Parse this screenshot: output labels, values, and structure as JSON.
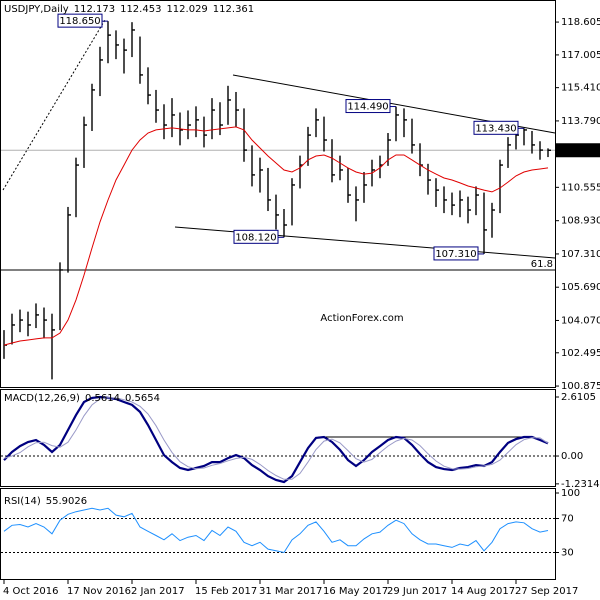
{
  "chart_data": [
    {
      "type": "ohlc",
      "title": "USDJPY,Daily",
      "last_open": 112.173,
      "categories": [
        "4 Oct 2016",
        null,
        null,
        null,
        null,
        null,
        null,
        null,
        "17 Nov 2016",
        null,
        null,
        null,
        null,
        null,
        null,
        null,
        "2 Jan 2017",
        null,
        null,
        null,
        null,
        null,
        null,
        null,
        "15 Feb 2017",
        null,
        null,
        null,
        null,
        null,
        null,
        null,
        "31 Mar 2017",
        null,
        null,
        null,
        null,
        null,
        null,
        null,
        "16 May 2017",
        null,
        null,
        null,
        null,
        null,
        null,
        null,
        "29 Jun 2017",
        null,
        null,
        null,
        null,
        null,
        null,
        null,
        "14 Aug 2017",
        null,
        null,
        null,
        null,
        null,
        null,
        null,
        "27 Sep 2017",
        null,
        null,
        null,
        null
      ],
      "high": [
        103.6,
        104.4,
        104.6,
        104.5,
        104.9,
        104.7,
        104.4,
        106.9,
        109.6,
        112.0,
        114.0,
        115.6,
        117.4,
        118.65,
        118.2,
        117.8,
        118.6,
        117.9,
        116.4,
        115.3,
        114.6,
        114.9,
        114.2,
        114.3,
        114.5,
        114.0,
        114.9,
        114.7,
        115.5,
        115.2,
        114.4,
        112.6,
        112.0,
        111.5,
        110.2,
        109.5,
        111.0,
        112.1,
        113.5,
        114.4,
        114.0,
        112.9,
        112.1,
        111.5,
        110.6,
        111.3,
        111.9,
        112.1,
        113.2,
        114.49,
        114.4,
        113.9,
        112.7,
        111.7,
        111.0,
        110.6,
        110.3,
        110.4,
        110.1,
        110.6,
        110.3,
        109.8,
        111.9,
        113.0,
        113.3,
        113.43,
        113.3,
        112.8,
        112.453
      ],
      "low": [
        102.2,
        102.9,
        103.5,
        103.3,
        103.7,
        103.2,
        101.2,
        103.6,
        106.4,
        109.1,
        111.5,
        113.3,
        115.0,
        116.6,
        116.8,
        116.1,
        116.9,
        115.6,
        114.6,
        113.7,
        112.9,
        113.0,
        112.6,
        112.9,
        113.0,
        112.5,
        112.9,
        113.1,
        113.6,
        113.5,
        111.8,
        110.6,
        110.3,
        109.4,
        108.5,
        108.12,
        108.7,
        110.5,
        111.6,
        113.0,
        112.3,
        110.8,
        110.9,
        109.8,
        108.9,
        109.8,
        110.6,
        111.0,
        111.6,
        112.8,
        113.0,
        112.2,
        111.1,
        110.2,
        109.6,
        109.3,
        109.2,
        109.1,
        108.8,
        109.2,
        107.31,
        108.1,
        109.3,
        111.5,
        112.4,
        112.6,
        112.2,
        111.9,
        112.029
      ],
      "close": [
        102.87,
        103.85,
        104.09,
        103.85,
        104.34,
        104.09,
        103.61,
        106.53,
        109.21,
        111.64,
        113.59,
        115.3,
        116.76,
        117.97,
        117.49,
        117.24,
        118.22,
        116.03,
        115.05,
        114.32,
        113.59,
        114.08,
        113.35,
        113.59,
        113.84,
        113.1,
        114.32,
        113.59,
        114.81,
        114.32,
        112.37,
        111.16,
        111.4,
        109.94,
        109.21,
        108.72,
        110.67,
        111.64,
        113.1,
        113.84,
        112.86,
        111.16,
        111.4,
        110.18,
        109.94,
        110.67,
        111.4,
        111.64,
        112.86,
        114.08,
        113.84,
        112.62,
        111.64,
        110.91,
        110.42,
        109.94,
        109.69,
        109.94,
        109.45,
        110.18,
        108.48,
        109.45,
        111.64,
        112.62,
        113.1,
        113.35,
        112.62,
        112.37,
        112.361
      ],
      "color": "#000000",
      "ma": {
        "color": "#e00000",
        "values": [
          102.87,
          102.97,
          103.07,
          103.12,
          103.17,
          103.22,
          103.22,
          103.46,
          104.09,
          105.07,
          106.28,
          107.6,
          108.87,
          109.94,
          110.91,
          111.64,
          112.37,
          112.86,
          113.2,
          113.35,
          113.4,
          113.45,
          113.4,
          113.35,
          113.35,
          113.3,
          113.35,
          113.4,
          113.45,
          113.5,
          113.35,
          112.86,
          112.47,
          112.08,
          111.74,
          111.4,
          111.3,
          111.5,
          111.89,
          112.08,
          112.13,
          111.98,
          111.74,
          111.5,
          111.3,
          111.2,
          111.25,
          111.5,
          111.89,
          112.13,
          112.13,
          111.89,
          111.64,
          111.4,
          111.2,
          111.01,
          110.91,
          110.77,
          110.62,
          110.52,
          110.42,
          110.33,
          110.52,
          110.81,
          111.11,
          111.3,
          111.4,
          111.45,
          111.5
        ]
      },
      "annotations": [
        {
          "value": 118.65,
          "label": "118.650"
        },
        {
          "value": 114.49,
          "label": "114.490"
        },
        {
          "value": 113.43,
          "label": "113.430"
        },
        {
          "value": 108.12,
          "label": "108.120"
        },
        {
          "value": 107.31,
          "label": "107.310"
        }
      ],
      "fib_level": {
        "value": 106.53,
        "label": "61.8"
      },
      "watermark": "ActionForex.com",
      "ylim": [
        100.78,
        119.68
      ],
      "yticks": [
        118.605,
        117.005,
        {
          "value": 115.41,
          "label": "115.410"
        },
        {
          "value": 113.79,
          "label": "113.790"
        },
        110.555,
        {
          "value": 108.93,
          "label": "108.930"
        },
        {
          "value": 107.31,
          "label": "107.310"
        },
        {
          "value": 105.69,
          "label": "105.690"
        },
        {
          "value": 104.07,
          "label": "104.070"
        },
        102.495,
        100.875
      ]
    },
    {
      "type": "line",
      "title": "MACD(12,26,9)",
      "series": [
        {
          "color": "#000080",
          "width": 2.2,
          "values": [
            -0.18,
            0.18,
            0.44,
            0.62,
            0.71,
            0.49,
            0.18,
            0.49,
            1.15,
            1.81,
            2.39,
            2.57,
            2.61,
            2.57,
            2.52,
            2.39,
            2.26,
            1.95,
            1.37,
            0.71,
            0.04,
            -0.27,
            -0.53,
            -0.62,
            -0.53,
            -0.44,
            -0.27,
            -0.27,
            -0.09,
            0.04,
            -0.09,
            -0.4,
            -0.62,
            -0.89,
            -1.06,
            -1.15,
            -0.89,
            -0.27,
            0.35,
            0.8,
            0.84,
            0.62,
            0.27,
            -0.18,
            -0.44,
            -0.18,
            0.18,
            0.44,
            0.71,
            0.84,
            0.8,
            0.49,
            0.09,
            -0.27,
            -0.49,
            -0.58,
            -0.62,
            -0.53,
            -0.49,
            -0.4,
            -0.44,
            -0.27,
            0.18,
            0.58,
            0.75,
            0.84,
            0.84,
            0.71,
            0.5614
          ]
        },
        {
          "color": "#9a9ac8",
          "width": 1,
          "values": [
            -0.1,
            0,
            0.15,
            0.41,
            0.59,
            0.61,
            0.46,
            0.39,
            0.61,
            1.15,
            1.78,
            2.26,
            2.52,
            2.58,
            2.57,
            2.49,
            2.39,
            2.2,
            1.86,
            1.34,
            0.71,
            0.16,
            -0.25,
            -0.47,
            -0.56,
            -0.53,
            -0.41,
            -0.33,
            -0.21,
            -0.11,
            -0.05,
            -0.15,
            -0.37,
            -0.64,
            -0.86,
            -1.03,
            -1.03,
            -0.77,
            -0.27,
            0.29,
            0.66,
            0.75,
            0.58,
            0.24,
            -0.12,
            -0.27,
            -0.15,
            0.15,
            0.44,
            0.66,
            0.78,
            0.71,
            0.46,
            0.1,
            -0.22,
            -0.45,
            -0.56,
            -0.58,
            -0.55,
            -0.47,
            -0.44,
            -0.37,
            -0.18,
            0.16,
            0.5,
            0.72,
            0.81,
            0.8,
            0.5654
          ]
        }
      ],
      "ylim": [
        -1.37,
        2.92
      ],
      "yticks": [
        2.6105,
        {
          "value": 0,
          "label": "0.00"
        },
        -1.2314
      ],
      "levels": [
        0
      ]
    },
    {
      "type": "line",
      "title": "RSI(14)",
      "series": [
        {
          "color": "#1e90ff",
          "width": 1,
          "values": [
            55,
            62,
            63,
            60,
            64,
            60,
            52,
            68,
            75,
            78,
            80,
            82,
            80,
            82,
            74,
            72,
            76,
            60,
            55,
            50,
            45,
            52,
            44,
            48,
            50,
            44,
            56,
            50,
            60,
            55,
            42,
            38,
            42,
            34,
            32,
            30,
            45,
            52,
            62,
            66,
            55,
            42,
            45,
            38,
            38,
            46,
            52,
            54,
            62,
            68,
            64,
            52,
            45,
            40,
            40,
            38,
            36,
            40,
            38,
            44,
            32,
            42,
            58,
            64,
            66,
            65,
            58,
            54,
            55.9026
          ]
        }
      ],
      "ylim": [
        0,
        100
      ],
      "yticks": [
        100,
        70,
        30
      ],
      "levels": [
        70,
        30
      ]
    }
  ]
}
